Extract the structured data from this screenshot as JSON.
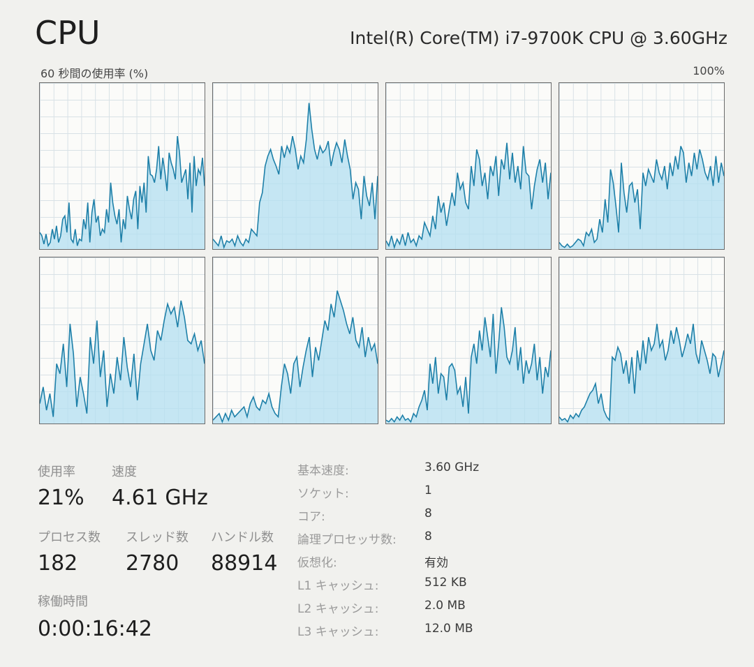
{
  "header": {
    "title": "CPU",
    "model": "Intel(R) Core(TM) i7-9700K CPU @ 3.60GHz"
  },
  "graph": {
    "axis_label": "60 秒間の使用率 (%)",
    "axis_max": "100%",
    "line_color": "#1d7fa8",
    "fill_color": "#b3dff0"
  },
  "chart_data": {
    "type": "area",
    "title": "",
    "ylabel": "60 秒間の使用率 (%)",
    "ylim": [
      0,
      100
    ],
    "grid": true,
    "series": [
      {
        "values": [
          10,
          8,
          3,
          9,
          2,
          4,
          12,
          6,
          14,
          4,
          8,
          18,
          20,
          10,
          28,
          6,
          4,
          12,
          2,
          6,
          5,
          18,
          12,
          28,
          4,
          22,
          30,
          16,
          20,
          8,
          12,
          10,
          24,
          16,
          40,
          28,
          20,
          15,
          24,
          4,
          18,
          12,
          32,
          24,
          18,
          30,
          35,
          12,
          38,
          28,
          40,
          22,
          56,
          45,
          44,
          40,
          48,
          62,
          42,
          55,
          46,
          35,
          58,
          52,
          48,
          42,
          68,
          58,
          40,
          44,
          48,
          30,
          52,
          22,
          56,
          38,
          48,
          45,
          55,
          38
        ]
      },
      {
        "values": [
          6,
          4,
          2,
          8,
          1,
          5,
          4,
          6,
          2,
          8,
          4,
          2,
          6,
          4,
          12,
          10,
          8,
          28,
          34,
          50,
          56,
          60,
          54,
          50,
          45,
          62,
          55,
          62,
          58,
          68,
          60,
          48,
          56,
          52,
          66,
          88,
          72,
          60,
          54,
          62,
          58,
          60,
          65,
          50,
          58,
          64,
          60,
          52,
          66,
          56,
          48,
          30,
          40,
          36,
          18,
          44,
          32,
          26,
          40,
          18,
          44
        ]
      },
      {
        "values": [
          5,
          2,
          8,
          1,
          6,
          3,
          9,
          2,
          10,
          4,
          6,
          2,
          8,
          6,
          16,
          12,
          8,
          20,
          12,
          32,
          22,
          28,
          14,
          24,
          34,
          26,
          46,
          36,
          40,
          28,
          24,
          50,
          38,
          60,
          54,
          38,
          46,
          30,
          50,
          44,
          56,
          32,
          54,
          48,
          64,
          42,
          58,
          40,
          50,
          36,
          62,
          46,
          44,
          24,
          38,
          48,
          54,
          40,
          52,
          30,
          46
        ]
      },
      {
        "values": [
          4,
          2,
          1,
          3,
          1,
          2,
          4,
          6,
          5,
          2,
          10,
          8,
          12,
          4,
          6,
          18,
          10,
          30,
          16,
          48,
          40,
          26,
          10,
          52,
          34,
          22,
          38,
          40,
          28,
          36,
          12,
          46,
          38,
          48,
          44,
          40,
          54,
          46,
          42,
          50,
          36,
          52,
          44,
          56,
          48,
          62,
          58,
          40,
          52,
          44,
          58,
          48,
          60,
          54,
          46,
          42,
          50,
          38,
          56,
          40,
          52,
          44
        ]
      },
      {
        "values": [
          12,
          22,
          8,
          18,
          4,
          36,
          30,
          48,
          22,
          60,
          42,
          10,
          28,
          18,
          6,
          52,
          36,
          62,
          28,
          44,
          10,
          30,
          18,
          40,
          26,
          52,
          34,
          22,
          42,
          14,
          36,
          48,
          60,
          44,
          38,
          56,
          50,
          62,
          72,
          66,
          70,
          58,
          74,
          64,
          50,
          48,
          54,
          44,
          50,
          36
        ]
      },
      {
        "values": [
          2,
          4,
          6,
          1,
          6,
          2,
          8,
          4,
          6,
          8,
          10,
          4,
          12,
          16,
          10,
          8,
          14,
          12,
          18,
          10,
          6,
          4,
          22,
          36,
          30,
          18,
          36,
          40,
          22,
          34,
          44,
          52,
          28,
          46,
          38,
          50,
          62,
          56,
          72,
          64,
          80,
          74,
          68,
          60,
          54,
          64,
          50,
          46,
          58,
          40,
          52,
          44,
          48,
          36
        ]
      },
      {
        "values": [
          2,
          1,
          3,
          1,
          4,
          2,
          5,
          2,
          3,
          1,
          6,
          4,
          10,
          14,
          20,
          8,
          36,
          24,
          40,
          18,
          30,
          28,
          14,
          34,
          36,
          32,
          18,
          22,
          10,
          28,
          6,
          40,
          48,
          36,
          56,
          44,
          64,
          52,
          40,
          66,
          30,
          48,
          70,
          58,
          40,
          36,
          44,
          58,
          32,
          46,
          24,
          38,
          30,
          36,
          48,
          26,
          40,
          18,
          34,
          28,
          44
        ]
      },
      {
        "values": [
          4,
          2,
          3,
          1,
          5,
          3,
          6,
          4,
          8,
          10,
          14,
          18,
          20,
          24,
          12,
          18,
          8,
          4,
          2,
          40,
          38,
          46,
          42,
          30,
          38,
          24,
          40,
          18,
          44,
          32,
          50,
          36,
          52,
          44,
          48,
          60,
          46,
          50,
          38,
          44,
          56,
          48,
          58,
          50,
          40,
          46,
          54,
          48,
          60,
          42,
          36,
          50,
          44,
          38,
          30,
          42,
          40,
          28,
          36,
          44
        ]
      }
    ]
  },
  "stats": {
    "usage_label": "使用率",
    "usage_value": "21%",
    "speed_label": "速度",
    "speed_value": "4.61 GHz",
    "processes_label": "プロセス数",
    "processes_value": "182",
    "threads_label": "スレッド数",
    "threads_value": "2780",
    "handles_label": "ハンドル数",
    "handles_value": "88914",
    "uptime_label": "稼働時間",
    "uptime_value": "0:00:16:42"
  },
  "properties": [
    {
      "key": "基本速度:",
      "value": "3.60 GHz"
    },
    {
      "key": "ソケット:",
      "value": "1"
    },
    {
      "key": "コア:",
      "value": "8"
    },
    {
      "key": "論理プロセッサ数:",
      "value": "8"
    },
    {
      "key": "仮想化:",
      "value": "有効"
    },
    {
      "key": "L1 キャッシュ:",
      "value": "512 KB"
    },
    {
      "key": "L2 キャッシュ:",
      "value": "2.0 MB"
    },
    {
      "key": "L3 キャッシュ:",
      "value": "12.0 MB"
    }
  ]
}
